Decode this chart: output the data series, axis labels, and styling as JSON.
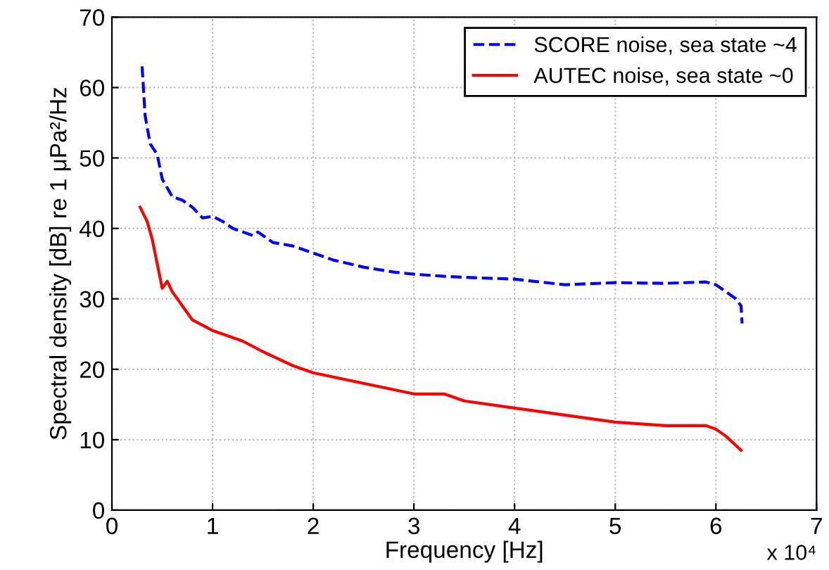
{
  "chart_data": {
    "type": "line",
    "xlabel": "Frequency [Hz]",
    "ylabel": "Spectral density [dB] re 1 μPa²/Hz",
    "annotations": [
      "x 10⁴"
    ],
    "xlim": [
      0,
      7
    ],
    "ylim": [
      0,
      70
    ],
    "xticks": [
      0,
      1,
      2,
      3,
      4,
      5,
      6,
      7
    ],
    "yticks": [
      0,
      10,
      20,
      30,
      40,
      50,
      60,
      70
    ],
    "grid": true,
    "legend": "top right",
    "series": [
      {
        "name": "SCORE noise, sea state ~4",
        "color": "#0000ff",
        "line_style": "dashed",
        "x": [
          0.3,
          0.33,
          0.38,
          0.45,
          0.5,
          0.6,
          0.7,
          0.8,
          0.9,
          1.0,
          1.1,
          1.2,
          1.4,
          1.45,
          1.6,
          1.8,
          2.0,
          2.2,
          2.5,
          2.8,
          3.0,
          3.3,
          3.6,
          4.0,
          4.5,
          5.0,
          5.5,
          5.9,
          6.0,
          6.1,
          6.2,
          6.25,
          6.26
        ],
        "values": [
          63,
          56,
          52,
          50.5,
          47,
          44.5,
          44,
          43,
          41.5,
          41.7,
          41,
          40,
          39,
          39.5,
          38,
          37.5,
          36.5,
          35.5,
          34.5,
          33.8,
          33.5,
          33.2,
          33,
          32.8,
          32,
          32.3,
          32.2,
          32.4,
          32,
          31,
          30,
          29,
          26.5
        ]
      },
      {
        "name": "AUTEC noise, sea state ~0",
        "color": "#ff0000",
        "line_style": "solid",
        "x": [
          0.28,
          0.35,
          0.4,
          0.45,
          0.5,
          0.55,
          0.6,
          0.7,
          0.8,
          1.0,
          1.3,
          1.5,
          1.8,
          2.0,
          2.5,
          3.0,
          3.3,
          3.5,
          4.0,
          4.5,
          5.0,
          5.5,
          5.9,
          6.0,
          6.1,
          6.25
        ],
        "values": [
          43,
          41,
          38.5,
          35,
          31.5,
          32.5,
          31,
          29,
          27,
          25.5,
          24,
          22.5,
          20.5,
          19.5,
          18,
          16.5,
          16.5,
          15.5,
          14.5,
          13.5,
          12.5,
          12,
          12,
          11.5,
          10.5,
          8.5
        ]
      }
    ]
  }
}
